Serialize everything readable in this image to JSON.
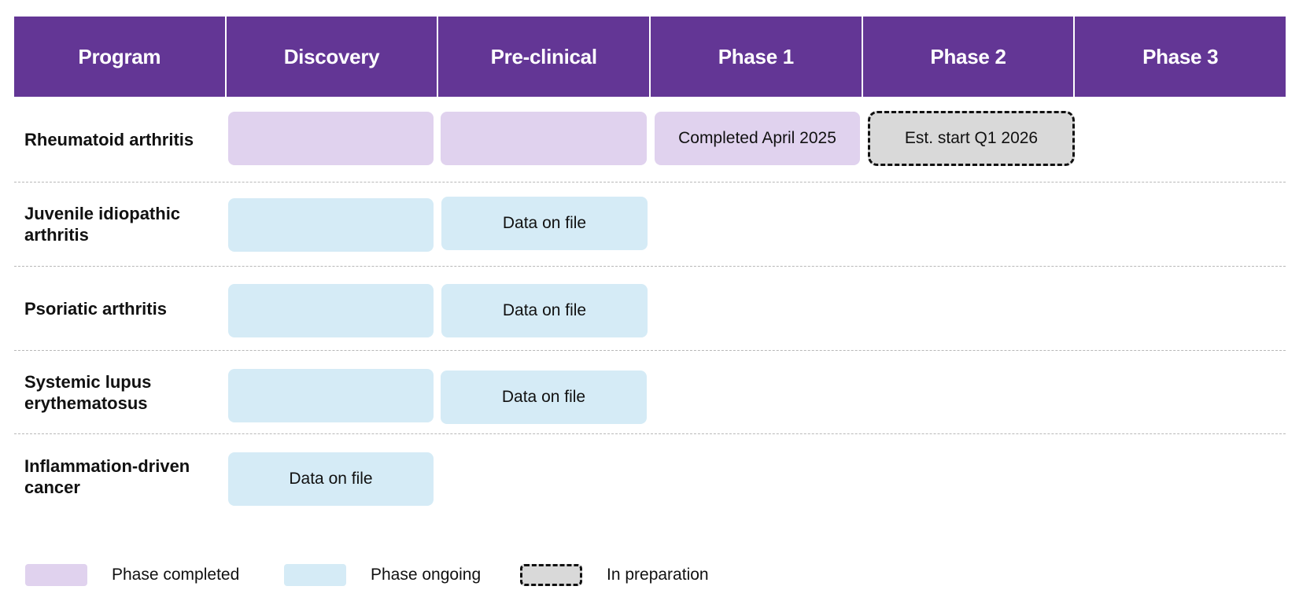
{
  "header": {
    "columns": [
      "Program",
      "Discovery",
      "Pre-clinical",
      "Phase 1",
      "Phase 2",
      "Phase 3"
    ]
  },
  "programs": [
    {
      "name": "Rheumatoid arthritis",
      "phases": [
        {
          "phase": "Discovery",
          "status": "completed",
          "label": ""
        },
        {
          "phase": "Pre-clinical",
          "status": "completed",
          "label": ""
        },
        {
          "phase": "Phase 1",
          "status": "completed",
          "label": "Completed April 2025"
        },
        {
          "phase": "Phase 2",
          "status": "in-preparation",
          "label": "Est. start Q1 2026"
        }
      ]
    },
    {
      "name": "Juvenile idiopathic arthritis",
      "phases": [
        {
          "phase": "Discovery",
          "status": "ongoing",
          "label": ""
        },
        {
          "phase": "Pre-clinical",
          "status": "ongoing",
          "label": "Data on file"
        }
      ]
    },
    {
      "name": "Psoriatic arthritis",
      "phases": [
        {
          "phase": "Discovery",
          "status": "ongoing",
          "label": ""
        },
        {
          "phase": "Pre-clinical",
          "status": "ongoing",
          "label": "Data on file"
        }
      ]
    },
    {
      "name": "Systemic lupus erythematosus",
      "phases": [
        {
          "phase": "Discovery",
          "status": "ongoing",
          "label": ""
        },
        {
          "phase": "Pre-clinical",
          "status": "ongoing",
          "label": "Data on file"
        }
      ]
    },
    {
      "name": "Inflammation-driven cancer",
      "phases": [
        {
          "phase": "Discovery",
          "status": "ongoing",
          "label": "Data on file"
        }
      ]
    }
  ],
  "legend": {
    "completed": "Phase completed",
    "ongoing": "Phase ongoing",
    "prep": "In preparation"
  },
  "colors": {
    "header": "#633695",
    "completed": "#e0d2ee",
    "ongoing": "#d5ebf6",
    "in_preparation": "#d9d9d9",
    "divider": "#b8b8b8"
  }
}
